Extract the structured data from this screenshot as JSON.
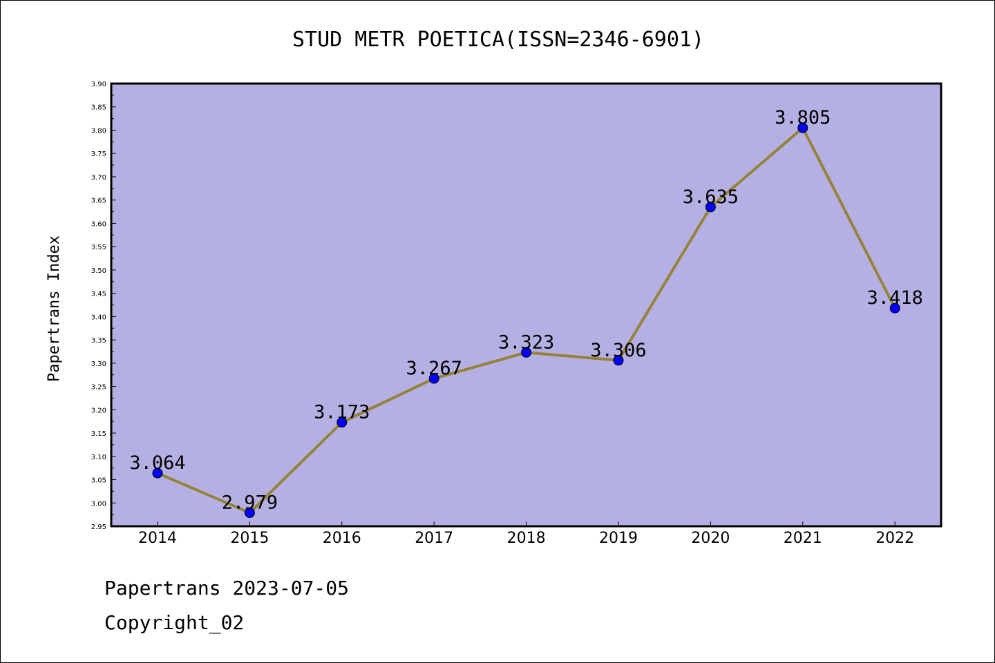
{
  "chart_data": {
    "type": "line",
    "title": "STUD METR POETICA(ISSN=2346-6901)",
    "xlabel": "",
    "ylabel": "Papertrans Index",
    "categories": [
      "2014",
      "2015",
      "2016",
      "2017",
      "2018",
      "2019",
      "2020",
      "2021",
      "2022"
    ],
    "values": [
      3.064,
      2.979,
      3.173,
      3.267,
      3.323,
      3.306,
      3.635,
      3.805,
      3.418
    ],
    "data_labels": [
      "3.064",
      "2.979",
      "3.173",
      "3.267",
      "3.323",
      "3.306",
      "3.635",
      "3.805",
      "3.418"
    ],
    "ylim": [
      2.95,
      3.9
    ],
    "yticks": [
      "2.95",
      "3.00",
      "3.05",
      "3.10",
      "3.15",
      "3.20",
      "3.25",
      "3.30",
      "3.35",
      "3.40",
      "3.45",
      "3.50",
      "3.55",
      "3.60",
      "3.65",
      "3.70",
      "3.75",
      "3.80",
      "3.85",
      "3.90"
    ],
    "grid": false,
    "colors": {
      "plot_background": "#b5b0e3",
      "line": "#968237",
      "marker": "#0000ff"
    }
  },
  "footer": {
    "line1": "Papertrans 2023-07-05",
    "line2": "Copyright_02"
  }
}
